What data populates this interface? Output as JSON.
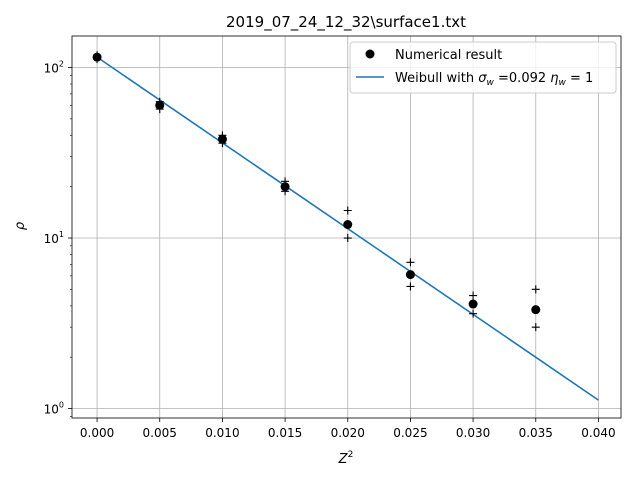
{
  "chart_data": {
    "type": "scatter",
    "title": "2019_07_24_12_32\\surface1.txt",
    "xlabel": "Z²",
    "ylabel": "ρ",
    "yscale": "log",
    "xlim": [
      -0.002,
      0.0418
    ],
    "ylim": [
      0.88,
      153
    ],
    "grid": true,
    "legend_position": "top-right",
    "x_ticks": [
      0.0,
      0.005,
      0.01,
      0.015,
      0.02,
      0.025,
      0.03,
      0.035,
      0.04
    ],
    "x_tick_labels": [
      "0.000",
      "0.005",
      "0.010",
      "0.015",
      "0.020",
      "0.025",
      "0.030",
      "0.035",
      "0.040"
    ],
    "y_ticks": [
      1,
      10,
      100
    ],
    "series": [
      {
        "name": "Numerical result",
        "kind": "points",
        "color": "#000000",
        "x": [
          0.0,
          0.005,
          0.01,
          0.015,
          0.02,
          0.025,
          0.03,
          0.035
        ],
        "y": [
          115,
          60,
          38,
          20,
          12,
          6.1,
          4.1,
          3.8
        ]
      },
      {
        "name": "",
        "kind": "error-markers",
        "color": "#000000",
        "x": [
          0.0,
          0.0,
          0.005,
          0.005,
          0.01,
          0.01,
          0.015,
          0.015,
          0.02,
          0.02,
          0.025,
          0.025,
          0.03,
          0.03,
          0.035,
          0.035
        ],
        "y": [
          118,
          112,
          63,
          57,
          40,
          36,
          21.5,
          18.8,
          14.5,
          10,
          7.2,
          5.2,
          4.6,
          3.6,
          5.0,
          3.0
        ]
      },
      {
        "name": "Weibull with σ_w =0.092 η_w = 1",
        "kind": "line",
        "color": "#1f77b4",
        "x": [
          0.0,
          0.04
        ],
        "y": [
          115,
          1.12
        ]
      }
    ],
    "legend": {
      "entry1": "Numerical result",
      "entry2_prefix": "Weibull with ",
      "sigma_symbol": "σ",
      "sigma_sub": "w",
      "sigma_value": " =0.092 ",
      "eta_symbol": "η",
      "eta_sub": "w",
      "eta_value": " = 1"
    },
    "labels": {
      "xlabel_base": "Z",
      "xlabel_sup": "2",
      "ylabel": "ρ",
      "tick_base": "10",
      "tick_exps": [
        "0",
        "1",
        "2"
      ]
    }
  }
}
